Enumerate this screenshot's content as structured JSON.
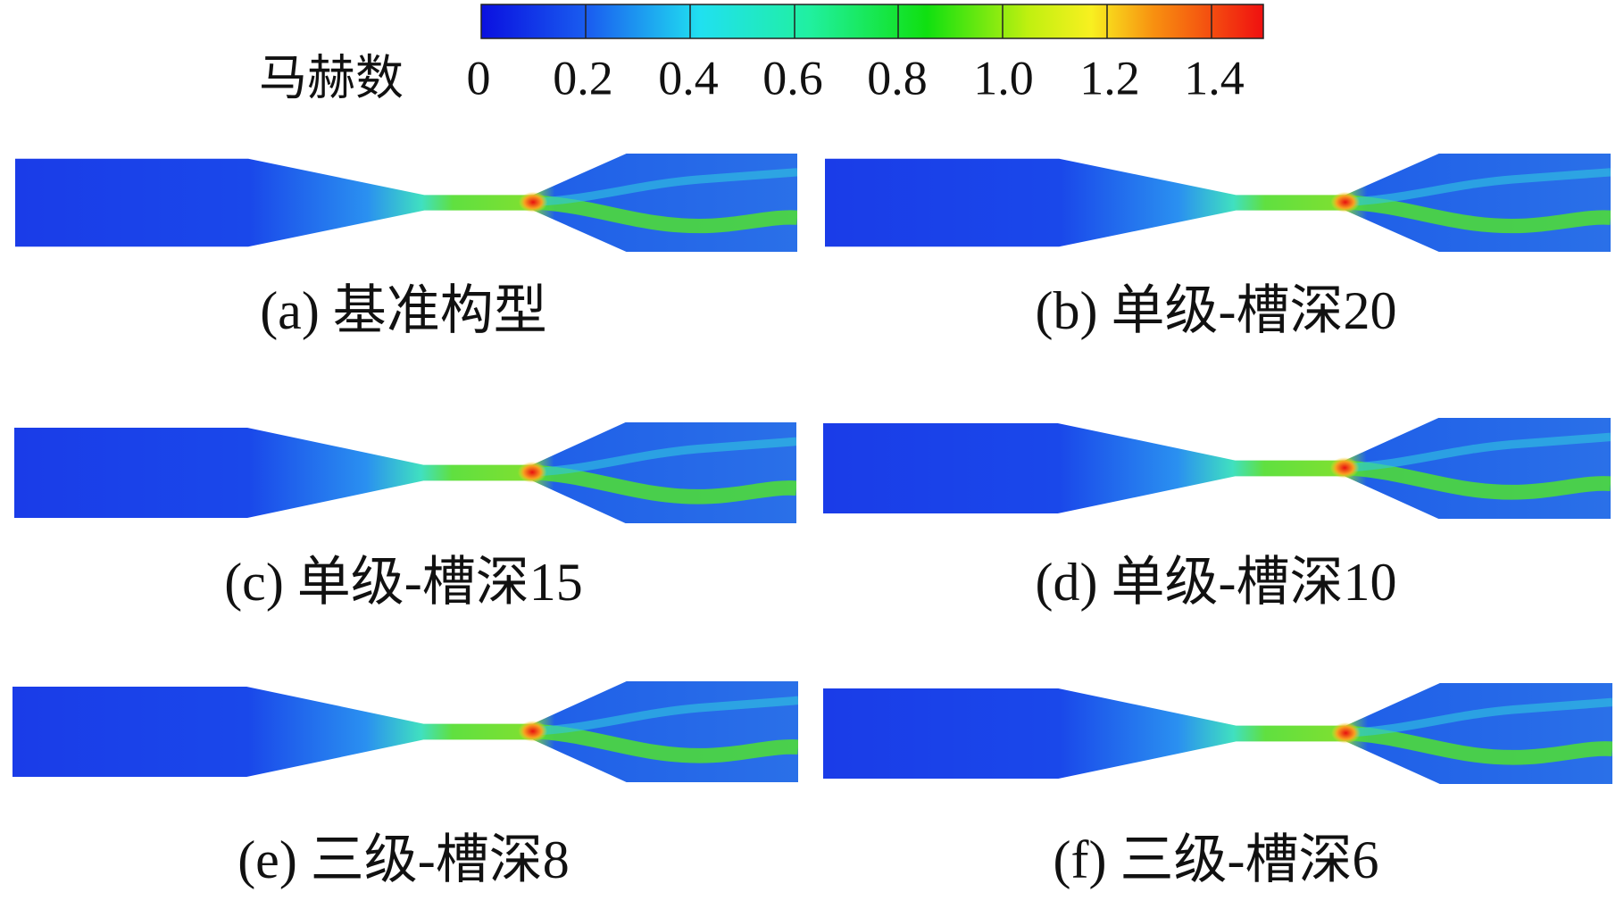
{
  "colorbar": {
    "title": "马赫数",
    "ticks": [
      "0",
      "0.2",
      "0.4",
      "0.6",
      "0.8",
      "1.0",
      "1.2",
      "1.4"
    ]
  },
  "panels": [
    {
      "caption": "(a) 基准构型"
    },
    {
      "caption": "(b) 单级-槽深20"
    },
    {
      "caption": "(c) 单级-槽深15"
    },
    {
      "caption": "(d) 单级-槽深10"
    },
    {
      "caption": "(e) 三级-槽深8"
    },
    {
      "caption": "(f) 三级-槽深6"
    }
  ]
}
